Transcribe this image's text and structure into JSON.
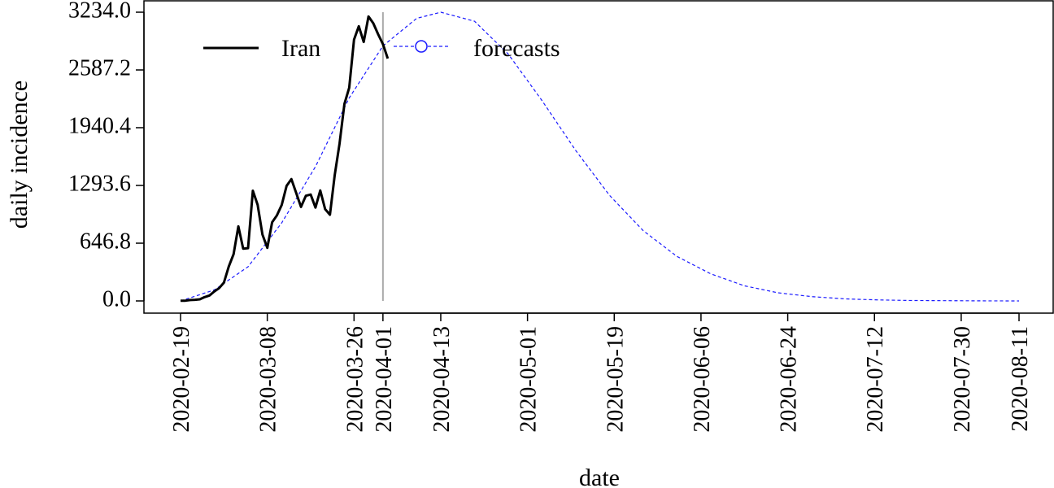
{
  "chart_data": {
    "type": "line",
    "xlabel": "date",
    "ylabel": "daily incidence",
    "y_ticks": [
      "0.0",
      "646.8",
      "1293.6",
      "1940.4",
      "2587.2",
      "3234.0"
    ],
    "ylim": [
      0,
      3234
    ],
    "x_ticks": [
      "2020-02-19",
      "2020-03-08",
      "2020-03-26",
      "2020-04-01",
      "2020-04-13",
      "2020-05-01",
      "2020-05-19",
      "2020-06-06",
      "2020-06-24",
      "2020-07-12",
      "2020-07-30",
      "2020-08-11"
    ],
    "xlim": [
      "2020-02-19",
      "2020-08-11"
    ],
    "forecast_start": "2020-04-01",
    "legend_position": "top-left",
    "grid": false,
    "colors": {
      "observed": "#000000",
      "forecast": "#1a1aff",
      "divider": "#aaaaaa"
    },
    "series": [
      {
        "name": "Iran",
        "style": "solid",
        "x": [
          "2020-02-19",
          "2020-02-20",
          "2020-02-21",
          "2020-02-22",
          "2020-02-23",
          "2020-02-24",
          "2020-02-25",
          "2020-02-26",
          "2020-02-27",
          "2020-02-28",
          "2020-02-29",
          "2020-03-01",
          "2020-03-02",
          "2020-03-03",
          "2020-03-04",
          "2020-03-05",
          "2020-03-06",
          "2020-03-07",
          "2020-03-08",
          "2020-03-09",
          "2020-03-10",
          "2020-03-11",
          "2020-03-12",
          "2020-03-13",
          "2020-03-14",
          "2020-03-15",
          "2020-03-16",
          "2020-03-17",
          "2020-03-18",
          "2020-03-19",
          "2020-03-20",
          "2020-03-21",
          "2020-03-22",
          "2020-03-23",
          "2020-03-24",
          "2020-03-25",
          "2020-03-26",
          "2020-03-27",
          "2020-03-28",
          "2020-03-29",
          "2020-03-30",
          "2020-03-31",
          "2020-04-01",
          "2020-04-02"
        ],
        "values": [
          2,
          3,
          10,
          13,
          18,
          43,
          61,
          106,
          143,
          205,
          385,
          523,
          835,
          586,
          591,
          1234,
          1076,
          743,
          595,
          881,
          958,
          1075,
          1289,
          1365,
          1209,
          1053,
          1178,
          1192,
          1046,
          1237,
          1028,
          966,
          1411,
          1762,
          2206,
          2389,
          2926,
          3076,
          2901,
          3186,
          3110,
          2988,
          2875,
          2715
        ]
      },
      {
        "name": "forecasts",
        "style": "dashed",
        "marker": "circle",
        "x": [
          "2020-02-19",
          "2020-02-26",
          "2020-03-04",
          "2020-03-11",
          "2020-03-18",
          "2020-03-25",
          "2020-04-01",
          "2020-04-08",
          "2020-04-13",
          "2020-04-20",
          "2020-04-27",
          "2020-05-04",
          "2020-05-11",
          "2020-05-18",
          "2020-05-25",
          "2020-06-01",
          "2020-06-08",
          "2020-06-15",
          "2020-06-22",
          "2020-06-29",
          "2020-07-06",
          "2020-07-13",
          "2020-07-20",
          "2020-07-27",
          "2020-08-03",
          "2020-08-11"
        ],
        "values": [
          0,
          123,
          383,
          875,
          1504,
          2274,
          2857,
          3165,
          3234,
          3133,
          2766,
          2245,
          1685,
          1183,
          788,
          499,
          304,
          169,
          91,
          48,
          23,
          11,
          5,
          3,
          1,
          0
        ]
      }
    ]
  }
}
